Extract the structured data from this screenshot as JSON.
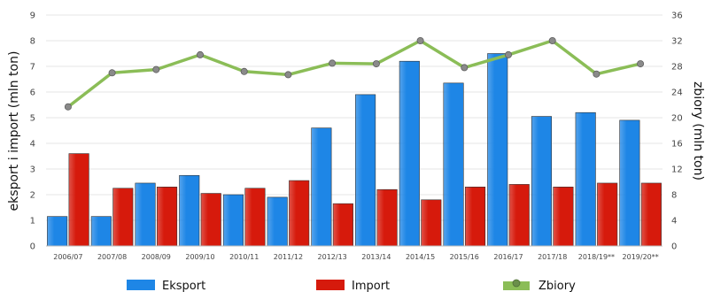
{
  "chart_data": {
    "type": "bar",
    "title": "",
    "categories": [
      "2006/07",
      "2007/08",
      "2008/09",
      "2009/10",
      "2010/11",
      "2011/12",
      "2012/13",
      "2013/14",
      "2014/15",
      "2015/16",
      "2016/17",
      "2017/18",
      "2018/19**",
      "2019/20**"
    ],
    "series": [
      {
        "name": "Eksport",
        "type": "bar",
        "axis": "left",
        "color": "#1e86e6",
        "values": [
          1.15,
          1.15,
          2.45,
          2.75,
          2.0,
          1.9,
          4.6,
          5.9,
          7.2,
          6.35,
          7.5,
          5.05,
          5.2,
          4.9
        ]
      },
      {
        "name": "Import",
        "type": "bar",
        "axis": "left",
        "color": "#d61a0c",
        "values": [
          3.6,
          2.25,
          2.3,
          2.05,
          2.25,
          2.55,
          1.65,
          2.2,
          1.8,
          2.3,
          2.4,
          2.3,
          2.45,
          2.45
        ]
      },
      {
        "name": "Zbiory",
        "type": "line",
        "axis": "right",
        "color": "#8bbd57",
        "values": [
          21.7,
          27.0,
          27.5,
          29.8,
          27.2,
          26.7,
          28.5,
          28.4,
          32.0,
          27.8,
          29.8,
          32.0,
          26.8,
          28.4
        ]
      }
    ],
    "ylabel": "eksport i import (mln ton)",
    "y2label": "zbiory (mln ton)",
    "ylim": [
      0,
      9
    ],
    "y2lim": [
      0,
      36
    ],
    "yticks": [
      "0",
      "1",
      "2",
      "3",
      "4",
      "5",
      "6",
      "7",
      "8",
      "9"
    ],
    "y2ticks": [
      "0",
      "4",
      "8",
      "12",
      "16",
      "20",
      "24",
      "28",
      "32",
      "36"
    ],
    "grid": true,
    "legend_position": "bottom"
  }
}
